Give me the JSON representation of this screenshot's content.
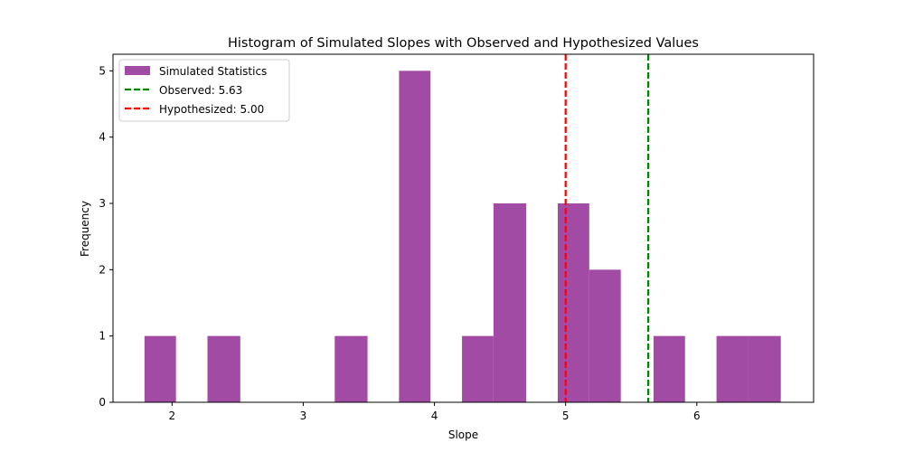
{
  "chart_data": {
    "type": "bar",
    "title": "Histogram of Simulated Slopes with Observed and Hypothesized Values",
    "xlabel": "Slope",
    "ylabel": "Frequency",
    "xlim": [
      1.55,
      6.89
    ],
    "ylim": [
      0,
      5.25
    ],
    "xticks": [
      2,
      3,
      4,
      5,
      6
    ],
    "yticks": [
      0,
      1,
      2,
      3,
      4,
      5
    ],
    "bar_color": "#a24ba4",
    "bins": [
      {
        "x0": 1.79,
        "x1": 2.03,
        "count": 1
      },
      {
        "x0": 2.03,
        "x1": 2.27,
        "count": 0
      },
      {
        "x0": 2.27,
        "x1": 2.52,
        "count": 1
      },
      {
        "x0": 2.52,
        "x1": 2.76,
        "count": 0
      },
      {
        "x0": 2.76,
        "x1": 3.0,
        "count": 0
      },
      {
        "x0": 3.0,
        "x1": 3.24,
        "count": 0
      },
      {
        "x0": 3.24,
        "x1": 3.49,
        "count": 1
      },
      {
        "x0": 3.49,
        "x1": 3.73,
        "count": 0
      },
      {
        "x0": 3.73,
        "x1": 3.97,
        "count": 5
      },
      {
        "x0": 3.97,
        "x1": 4.21,
        "count": 0
      },
      {
        "x0": 4.21,
        "x1": 4.45,
        "count": 1
      },
      {
        "x0": 4.45,
        "x1": 4.7,
        "count": 3
      },
      {
        "x0": 4.7,
        "x1": 4.94,
        "count": 0
      },
      {
        "x0": 4.94,
        "x1": 5.18,
        "count": 3
      },
      {
        "x0": 5.18,
        "x1": 5.42,
        "count": 2
      },
      {
        "x0": 5.42,
        "x1": 5.67,
        "count": 0
      },
      {
        "x0": 5.67,
        "x1": 5.91,
        "count": 1
      },
      {
        "x0": 5.91,
        "x1": 6.15,
        "count": 0
      },
      {
        "x0": 6.15,
        "x1": 6.39,
        "count": 1
      },
      {
        "x0": 6.39,
        "x1": 6.64,
        "count": 1
      }
    ],
    "reference_lines": [
      {
        "name": "Observed: 5.63",
        "value": 5.63,
        "color": "#008000"
      },
      {
        "name": "Hypothesized: 5.00",
        "value": 5.0,
        "color": "#ff0000"
      }
    ],
    "legend": {
      "placement": "top-left",
      "entries": [
        {
          "label": "Simulated Statistics",
          "kind": "patch",
          "color": "#a24ba4"
        },
        {
          "label": "Observed: 5.63",
          "kind": "dashed-line",
          "color": "#008000"
        },
        {
          "label": "Hypothesized: 5.00",
          "kind": "dashed-line",
          "color": "#ff0000"
        }
      ]
    },
    "grid": false
  }
}
